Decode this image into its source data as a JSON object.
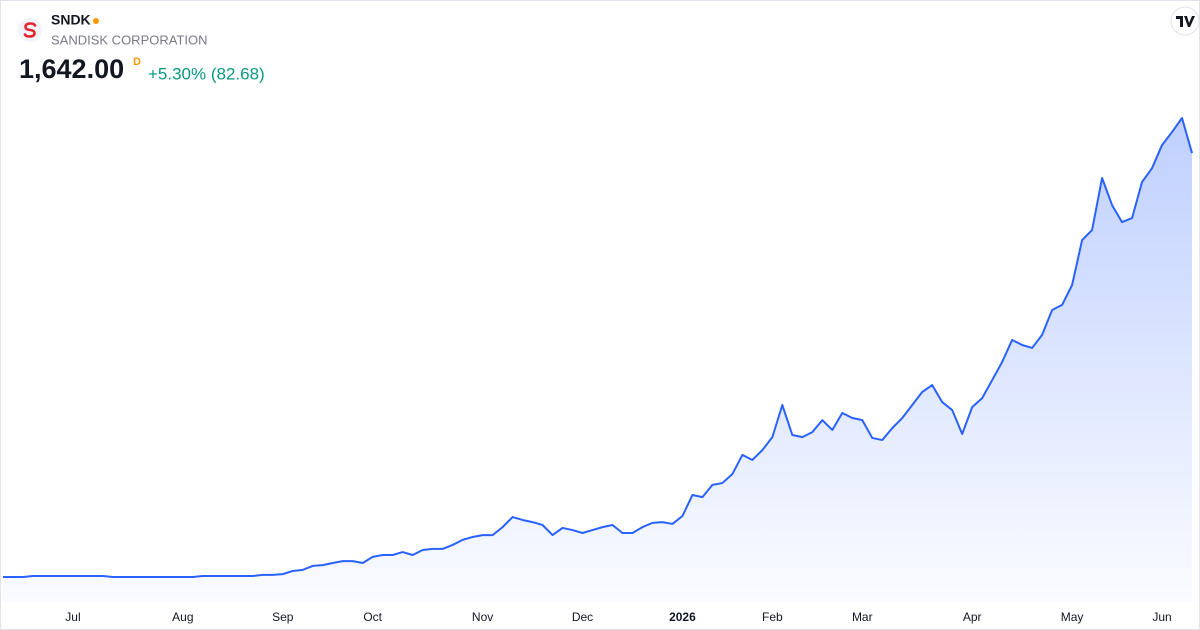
{
  "chart_data": {
    "type": "area",
    "title": "SNDK",
    "subtitle": "SANDISK CORPORATION",
    "price_label": "1,642.00",
    "interval": "D",
    "change_label": "+5.30% (82.68)",
    "categories": [
      null,
      null,
      null,
      null,
      null,
      null,
      null,
      "Jul",
      null,
      null,
      null,
      null,
      null,
      null,
      null,
      null,
      null,
      null,
      "Aug",
      null,
      null,
      null,
      null,
      null,
      null,
      null,
      null,
      null,
      "Sep",
      null,
      null,
      null,
      null,
      null,
      null,
      null,
      null,
      "Oct",
      null,
      null,
      null,
      null,
      null,
      null,
      null,
      null,
      null,
      null,
      "Nov",
      null,
      null,
      null,
      null,
      null,
      null,
      null,
      null,
      null,
      "Dec",
      null,
      null,
      null,
      null,
      null,
      null,
      null,
      null,
      null,
      "2026",
      null,
      null,
      null,
      null,
      null,
      null,
      null,
      null,
      "Feb",
      null,
      null,
      null,
      null,
      null,
      null,
      null,
      null,
      "Mar",
      null,
      null,
      null,
      null,
      null,
      null,
      null,
      null,
      null,
      null,
      "Apr",
      null,
      null,
      null,
      null,
      null,
      null,
      null,
      null,
      null,
      "May",
      null,
      null,
      null,
      null,
      null,
      null,
      null,
      null,
      "Jun",
      null,
      null,
      null
    ],
    "values": [
      45,
      45,
      45,
      49,
      49,
      49,
      49,
      49,
      49,
      49,
      49,
      45,
      45,
      45,
      45,
      45,
      45,
      45,
      45,
      45,
      49,
      49,
      49,
      49,
      49,
      49,
      53,
      53,
      56,
      68,
      72,
      87,
      90,
      98,
      105,
      105,
      98,
      121,
      128,
      128,
      139,
      128,
      147,
      151,
      151,
      166,
      185,
      196,
      203,
      203,
      233,
      271,
      260,
      252,
      241,
      203,
      230,
      222,
      211,
      222,
      233,
      241,
      211,
      211,
      233,
      249,
      252,
      245,
      275,
      354,
      346,
      392,
      399,
      433,
      505,
      486,
      523,
      572,
      693,
      580,
      572,
      591,
      636,
      599,
      663,
      644,
      636,
      569,
      561,
      606,
      644,
      693,
      742,
      768,
      704,
      674,
      584,
      685,
      719,
      787,
      855,
      938,
      919,
      908,
      957,
      1051,
      1070,
      1145,
      1314,
      1352,
      1548,
      1446,
      1382,
      1397,
      1533,
      1585,
      1672,
      1721,
      1774,
      1642
    ],
    "color": "#2962ff",
    "ylim": [
      0,
      2000
    ]
  }
}
